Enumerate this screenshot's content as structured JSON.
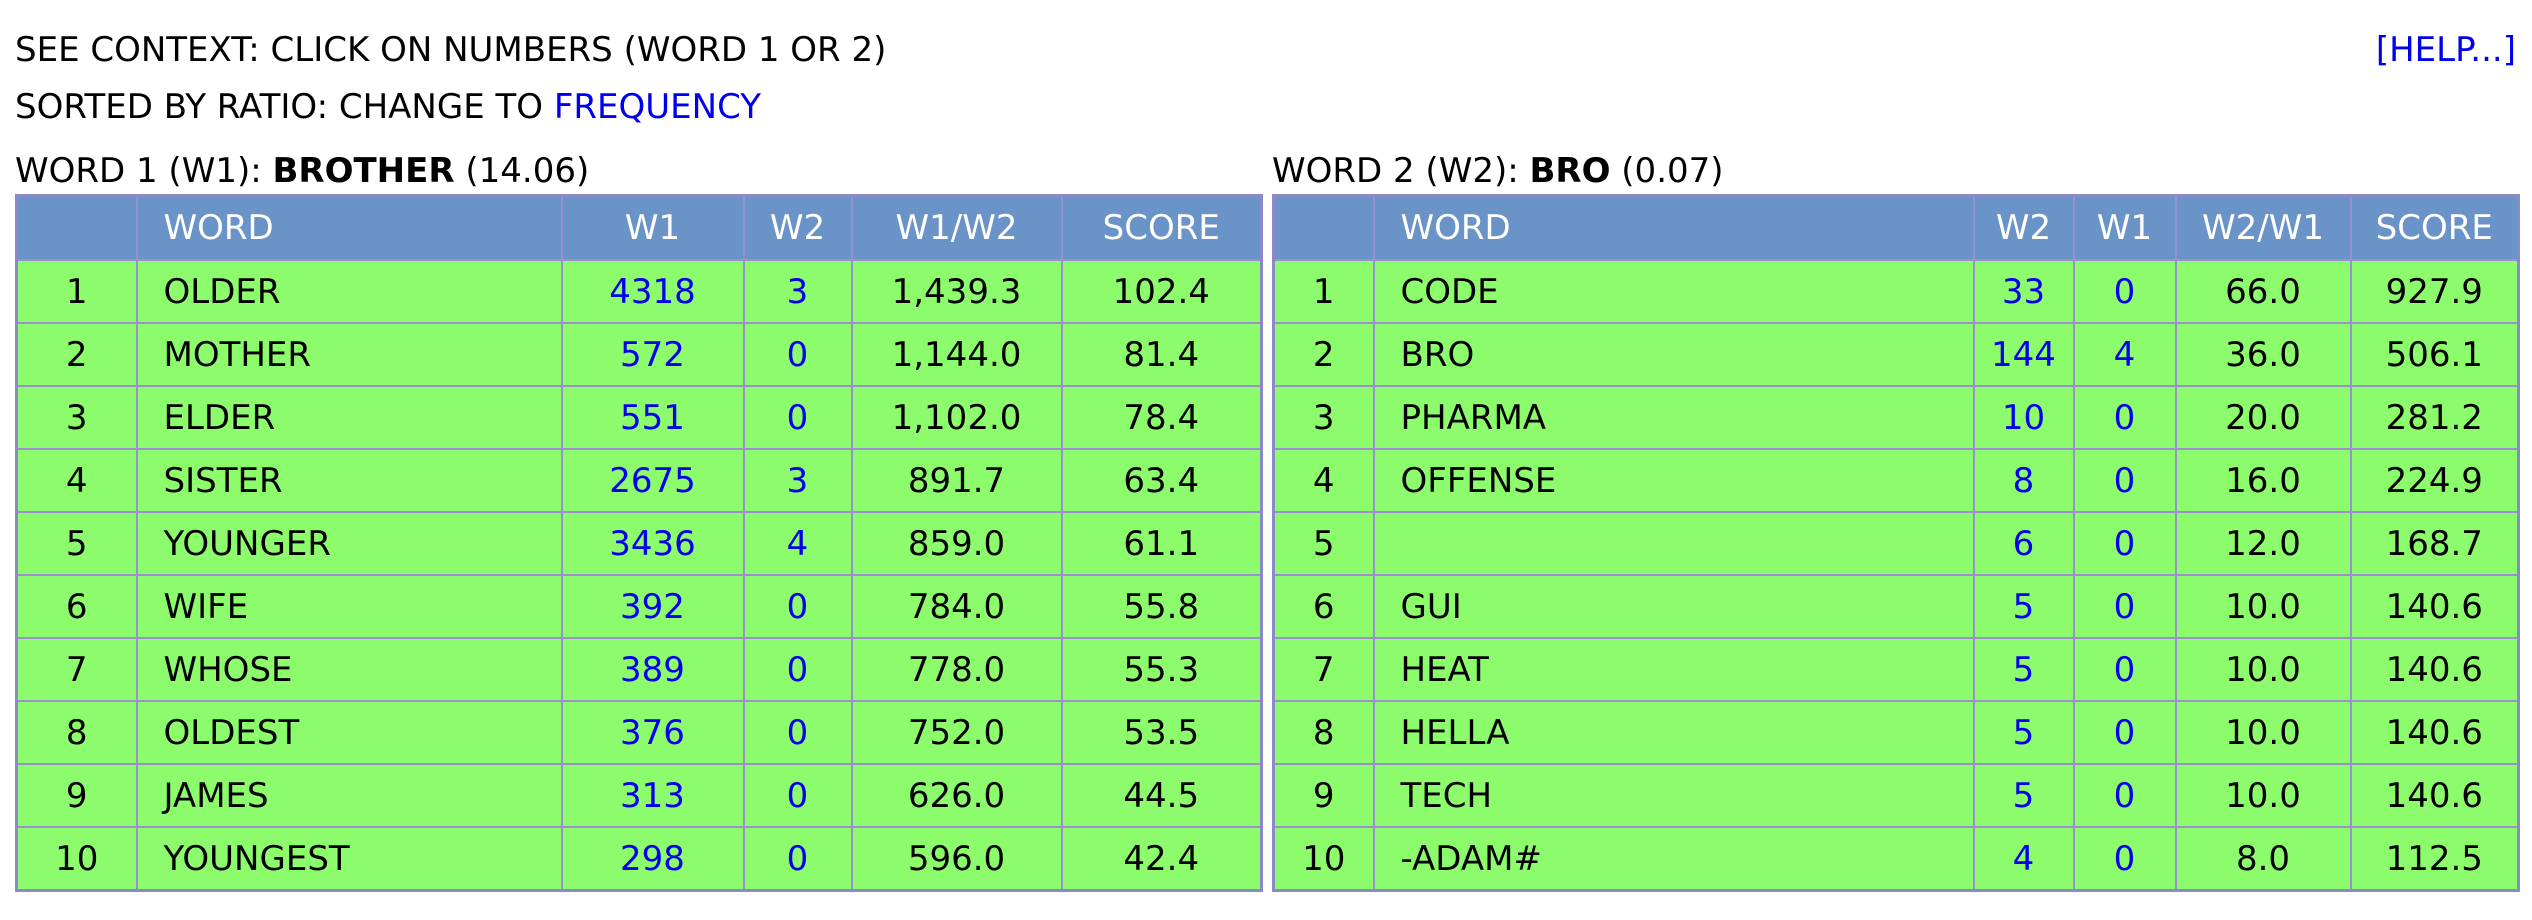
{
  "header": {
    "context_text": "SEE CONTEXT: CLICK ON NUMBERS (WORD 1 OR 2)",
    "sort_prefix": "SORTED BY RATIO: CHANGE TO ",
    "sort_link": "FREQUENCY",
    "help_link": "[HELP...]"
  },
  "table1": {
    "title_prefix": "WORD 1 (W1): ",
    "word": "BROTHER",
    "ratio": "(14.06)",
    "columns": [
      "",
      "WORD",
      "W1",
      "W2",
      "W1/W2",
      "SCORE"
    ],
    "rows": [
      {
        "rank": "1",
        "word": "OLDER",
        "w1": "4318",
        "w2": "3",
        "ratio": "1,439.3",
        "score": "102.4"
      },
      {
        "rank": "2",
        "word": "MOTHER",
        "w1": "572",
        "w2": "0",
        "ratio": "1,144.0",
        "score": "81.4"
      },
      {
        "rank": "3",
        "word": "ELDER",
        "w1": "551",
        "w2": "0",
        "ratio": "1,102.0",
        "score": "78.4"
      },
      {
        "rank": "4",
        "word": "SISTER",
        "w1": "2675",
        "w2": "3",
        "ratio": "891.7",
        "score": "63.4"
      },
      {
        "rank": "5",
        "word": "YOUNGER",
        "w1": "3436",
        "w2": "4",
        "ratio": "859.0",
        "score": "61.1"
      },
      {
        "rank": "6",
        "word": "WIFE",
        "w1": "392",
        "w2": "0",
        "ratio": "784.0",
        "score": "55.8"
      },
      {
        "rank": "7",
        "word": "WHOSE",
        "w1": "389",
        "w2": "0",
        "ratio": "778.0",
        "score": "55.3"
      },
      {
        "rank": "8",
        "word": "OLDEST",
        "w1": "376",
        "w2": "0",
        "ratio": "752.0",
        "score": "53.5"
      },
      {
        "rank": "9",
        "word": "JAMES",
        "w1": "313",
        "w2": "0",
        "ratio": "626.0",
        "score": "44.5"
      },
      {
        "rank": "10",
        "word": "YOUNGEST",
        "w1": "298",
        "w2": "0",
        "ratio": "596.0",
        "score": "42.4"
      }
    ]
  },
  "table2": {
    "title_prefix": "WORD 2 (W2): ",
    "word": "BRO",
    "ratio": "(0.07)",
    "columns": [
      "",
      "WORD",
      "W2",
      "W1",
      "W2/W1",
      "SCORE"
    ],
    "rows": [
      {
        "rank": "1",
        "word": "CODE",
        "w2": "33",
        "w1": "0",
        "ratio": "66.0",
        "score": "927.9"
      },
      {
        "rank": "2",
        "word": "BRO",
        "w2": "144",
        "w1": "4",
        "ratio": "36.0",
        "score": "506.1"
      },
      {
        "rank": "3",
        "word": "PHARMA",
        "w2": "10",
        "w1": "0",
        "ratio": "20.0",
        "score": "281.2"
      },
      {
        "rank": "4",
        "word": "OFFENSE",
        "w2": "8",
        "w1": "0",
        "ratio": "16.0",
        "score": "224.9"
      },
      {
        "rank": "5",
        "word": "",
        "w2": "6",
        "w1": "0",
        "ratio": "12.0",
        "score": "168.7"
      },
      {
        "rank": "6",
        "word": "GUI",
        "w2": "5",
        "w1": "0",
        "ratio": "10.0",
        "score": "140.6"
      },
      {
        "rank": "7",
        "word": "HEAT",
        "w2": "5",
        "w1": "0",
        "ratio": "10.0",
        "score": "140.6"
      },
      {
        "rank": "8",
        "word": "HELLA",
        "w2": "5",
        "w1": "0",
        "ratio": "10.0",
        "score": "140.6"
      },
      {
        "rank": "9",
        "word": "TECH",
        "w2": "5",
        "w1": "0",
        "ratio": "10.0",
        "score": "140.6"
      },
      {
        "rank": "10",
        "word": "-ADAM#",
        "w2": "4",
        "w1": "0",
        "ratio": "8.0",
        "score": "112.5"
      }
    ]
  }
}
